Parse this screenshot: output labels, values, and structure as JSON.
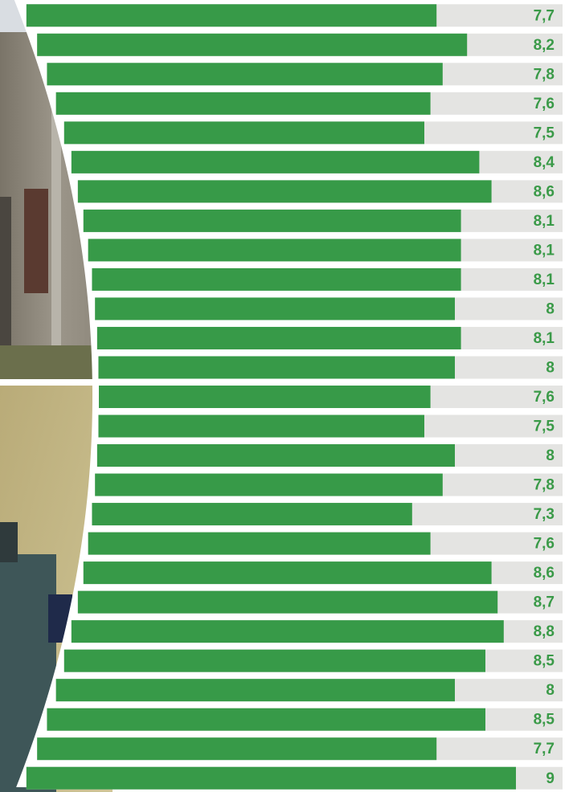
{
  "chart_data": {
    "type": "bar",
    "orientation": "horizontal",
    "color": "#379a48",
    "track_color": "#e4e4e2",
    "label_color": "#3a9a48",
    "values": [
      7.7,
      8.2,
      7.8,
      7.6,
      7.5,
      8.4,
      8.6,
      8.1,
      8.1,
      8.1,
      8,
      8.1,
      8,
      7.6,
      7.5,
      8,
      7.8,
      7.3,
      7.6,
      8.6,
      8.7,
      8.8,
      8.5,
      8,
      8.5,
      7.7,
      9
    ],
    "value_labels": [
      "7,7",
      "8,2",
      "7,8",
      "7,6",
      "7,5",
      "8,4",
      "8,6",
      "8,1",
      "8,1",
      "8,1",
      "8",
      "8,1",
      "8",
      "7,6",
      "7,5",
      "8",
      "7,8",
      "7,3",
      "7,6",
      "8,6",
      "8,7",
      "8,8",
      "8,5",
      "8",
      "8,5",
      "7,7",
      "9"
    ]
  }
}
